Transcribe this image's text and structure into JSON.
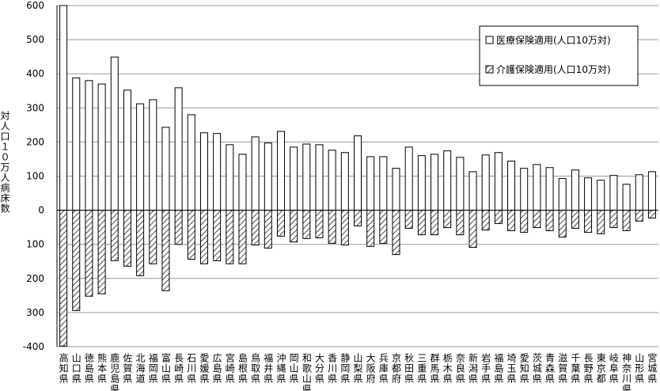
{
  "chart_data": {
    "type": "bar",
    "y_label": "対人口１０万人病床数",
    "categories": [
      "高知県",
      "山口県",
      "徳島県",
      "熊本県",
      "鹿児島県",
      "佐賀県",
      "北海道",
      "福岡県",
      "富山県",
      "長崎県",
      "石川県",
      "愛媛県",
      "広島県",
      "宮崎県",
      "島根県",
      "鳥取県",
      "福井県",
      "沖縄県",
      "岡山県",
      "和歌山県",
      "大分県",
      "香川県",
      "静岡県",
      "山梨県",
      "大阪府",
      "兵庫県",
      "京都府",
      "秋田県",
      "三重県",
      "群馬県",
      "栃木県",
      "奈良県",
      "新潟県",
      "岩手県",
      "福島県",
      "埼玉県",
      "愛知県",
      "茨城県",
      "青森県",
      "滋賀県",
      "千葉県",
      "長野県",
      "東京都",
      "岐阜県",
      "神奈川県",
      "山形県",
      "宮城県"
    ],
    "series": [
      {
        "name": "医療保険適用(人口10万対)",
        "color": "#ffffff",
        "pattern": "solid",
        "values": [
          600,
          388,
          380,
          370,
          449,
          352,
          312,
          324,
          243,
          359,
          280,
          227,
          225,
          192,
          164,
          215,
          197,
          231,
          185,
          194,
          192,
          176,
          169,
          218,
          157,
          157,
          123,
          185,
          160,
          164,
          174,
          155,
          113,
          162,
          169,
          144,
          123,
          134,
          125,
          93,
          118,
          95,
          88,
          102,
          76,
          104,
          113
        ]
      },
      {
        "name": "介護保険適用(人口10万対)",
        "color": "#000000",
        "pattern": "hatch",
        "values": [
          -398,
          -294,
          -252,
          -245,
          -148,
          -164,
          -192,
          -157,
          -236,
          -100,
          -144,
          -157,
          -148,
          -157,
          -157,
          -102,
          -111,
          -76,
          -93,
          -83,
          -81,
          -97,
          -102,
          -46,
          -106,
          -97,
          -130,
          -53,
          -72,
          -72,
          -51,
          -72,
          -109,
          -58,
          -39,
          -60,
          -65,
          -51,
          -60,
          -79,
          -53,
          -65,
          -69,
          -51,
          -60,
          -32,
          -23
        ]
      }
    ],
    "ylim": [
      -400,
      600
    ],
    "yticks": [
      600,
      500,
      400,
      300,
      200,
      100,
      0,
      {
        "value": -100,
        "label": "100"
      },
      {
        "value": -200,
        "label": "200"
      },
      {
        "value": -300,
        "label": "300"
      },
      -400
    ],
    "grid": true,
    "legend": "upper-right"
  }
}
